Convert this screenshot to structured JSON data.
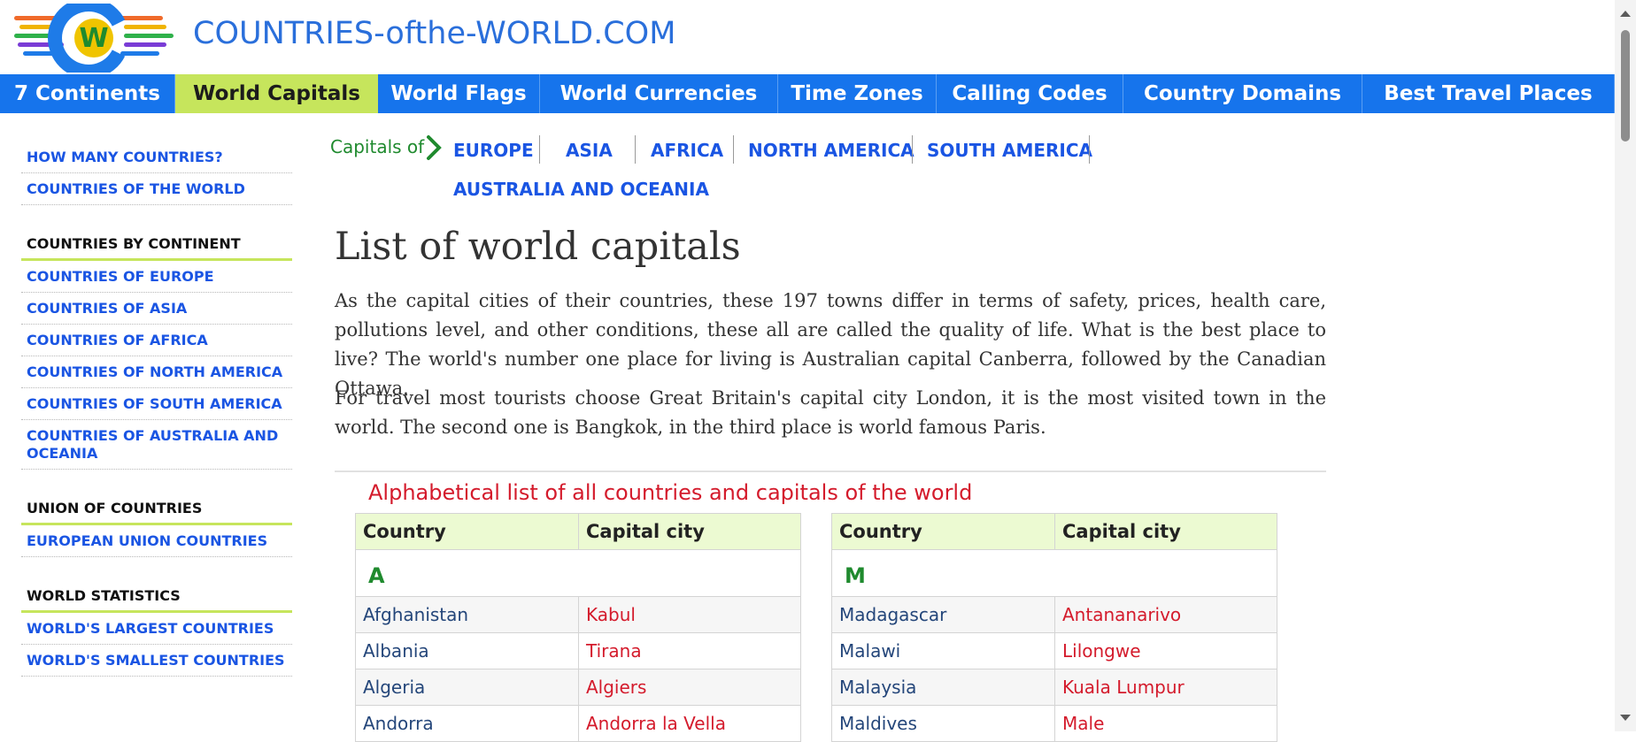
{
  "header": {
    "site_title": "COUNTRIES-ofthe-WORLD.COM",
    "logo_letter": "W"
  },
  "nav": {
    "items": [
      {
        "label": "7 Continents",
        "width": 198
      },
      {
        "label": "World Capitals",
        "width": 229,
        "active": true
      },
      {
        "label": "World Flags",
        "width": 183
      },
      {
        "label": "World Currencies",
        "width": 269
      },
      {
        "label": "Time Zones",
        "width": 179
      },
      {
        "label": "Calling Codes",
        "width": 211
      },
      {
        "label": "Country Domains",
        "width": 270
      },
      {
        "label": "Best Travel Places",
        "width": 285
      }
    ]
  },
  "sidebar": {
    "link_how_many": "HOW MANY COUNTRIES?",
    "link_countries_world": "COUNTRIES OF THE WORLD",
    "heading_by_continent": "COUNTRIES BY CONTINENT",
    "link_europe": "COUNTRIES OF EUROPE",
    "link_asia": "COUNTRIES OF ASIA",
    "link_africa": "COUNTRIES OF AFRICA",
    "link_north_america": "COUNTRIES OF NORTH AMERICA",
    "link_south_america": "COUNTRIES OF SOUTH AMERICA",
    "link_australia": "COUNTRIES OF AUSTRALIA AND OCEANIA",
    "heading_union": "UNION OF COUNTRIES",
    "link_eu": "EUROPEAN UNION COUNTRIES",
    "heading_stats": "WORLD STATISTICS",
    "link_largest": "WORLD'S LARGEST COUNTRIES",
    "link_smallest": "WORLD'S SMALLEST COUNTRIES"
  },
  "capitals_of": {
    "label": "Capitals of",
    "europe": "EUROPE",
    "asia": "ASIA",
    "africa": "AFRICA",
    "north_america": "NORTH AMERICA",
    "south_america": "SOUTH AMERICA",
    "australia": "AUSTRALIA AND OCEANIA"
  },
  "article": {
    "title": "List of world capitals",
    "para1": "As the capital cities of their countries, these 197 towns differ in terms of safety, prices, health care, pollutions level, and other conditions, these all are called the quality of life. What is the best place to live? The world's number one place for living is Australian capital Canberra, followed by the Canadian Ottawa.",
    "para2": "For travel most tourists choose Great Britain's capital city London, it is the most visited town in the world. The second one is Bangkok, in the third place is world famous Paris.",
    "list_heading": "Alphabetical list of all countries and capitals of the world"
  },
  "table_left": {
    "col_country": "Country",
    "col_capital": "Capital city",
    "letter": "A",
    "rows": [
      {
        "country": "Afghanistan",
        "capital": "Kabul"
      },
      {
        "country": "Albania",
        "capital": "Tirana"
      },
      {
        "country": "Algeria",
        "capital": "Algiers"
      },
      {
        "country": "Andorra",
        "capital": "Andorra la Vella"
      }
    ]
  },
  "table_right": {
    "col_country": "Country",
    "col_capital": "Capital city",
    "letter": "M",
    "rows": [
      {
        "country": "Madagascar",
        "capital": "Antananarivo"
      },
      {
        "country": "Malawi",
        "capital": "Lilongwe"
      },
      {
        "country": "Malaysia",
        "capital": "Kuala Lumpur"
      },
      {
        "country": "Maldives",
        "capital": "Male"
      }
    ]
  },
  "colors": {
    "nav_blue": "#1674ec",
    "nav_active": "#c6e55c",
    "link_blue": "#1a55e3",
    "capital_red": "#d41b2c",
    "heading_green": "#1f8a2e"
  }
}
